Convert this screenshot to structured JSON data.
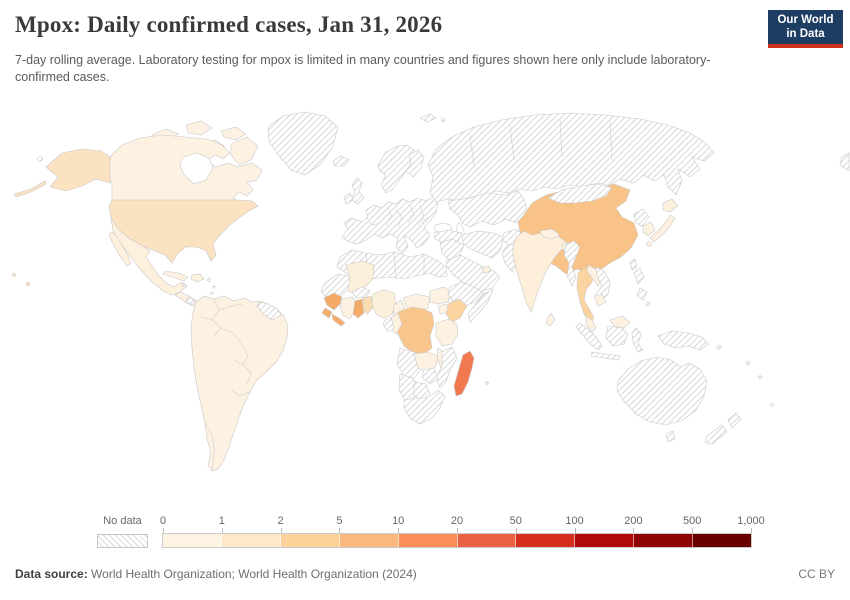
{
  "header": {
    "title": "Mpox: Daily confirmed cases, Jan 31, 2026",
    "subtitle": "7-day rolling average. Laboratory testing for mpox is limited in many countries and figures shown here only include laboratory-confirmed cases.",
    "logo": {
      "line1": "Our World",
      "line2": "in Data",
      "bg": "#1d3d63",
      "stripe": "#d0311f"
    }
  },
  "legend": {
    "no_data_label": "No data",
    "tick_labels": [
      "0",
      "1",
      "2",
      "5",
      "10",
      "20",
      "50",
      "100",
      "200",
      "500",
      "1,000"
    ],
    "colors": [
      "#fdf3e3",
      "#fee8c8",
      "#fcd29a",
      "#fcb97e",
      "#fc8d59",
      "#ec6144",
      "#d62f1f",
      "#b00a0a",
      "#8f0404",
      "#690000"
    ]
  },
  "footer": {
    "source_label": "Data source:",
    "source_text": " World Health Organization; World Health Organization (2024)",
    "license": "CC BY"
  },
  "map": {
    "border_color": "#c9c9c9",
    "ocean_color": "#ffffff",
    "countries": {
      "greenland": "hatch",
      "canada": "#fdf2e2",
      "canada-island": "#fdf2e2",
      "alaska": "#fbe2c0",
      "aleutians": "#fbe2c0",
      "bering-island": "hatch",
      "usa": "#fbe2c0",
      "hawaii": "#fbe2c0",
      "mexico": "#fdf0dc",
      "baja": "#fdf0dc",
      "guatemala-region": "#fdf2e2",
      "nicaragua": "hatch",
      "cuba": "#fdf2e2",
      "hispaniola": "#fdf2e2",
      "jamaica": "hatch",
      "puerto-rico": "#fdf2e2",
      "antilles": "hatch",
      "south-america": "#fdf2e2",
      "guyanas": "hatch",
      "iceland": "hatch",
      "uk": "hatch",
      "ireland": "hatch",
      "norway-sweden": "hatch",
      "finland": "hatch",
      "svalbard": "hatch",
      "europe-mainland": "hatch",
      "russia": "hatch",
      "russia-wrap": "hatch",
      "kazakhstan": "hatch",
      "turkey": "hatch",
      "middle-east": "hatch",
      "iran": "hatch",
      "afghanistan": "hatch",
      "pakistan": "hatch",
      "saudi-peninsula": "hatch",
      "uae": "#fdf2e2",
      "north-africa": "hatch",
      "mauritania-senegal": "hatch",
      "mali": "#fdf0db",
      "burkina-faso": "hatch",
      "guinea": "#f5aa66",
      "sierra-leone": "#f6ad6c",
      "liberia": "#f6ad6c",
      "cote-divoire": "#fdf2e2",
      "ghana": "#f5ab68",
      "togo-benin": "#fbdcb2",
      "nigeria": "#fdf0db",
      "cameroon": "#fdf2e2",
      "car": "#fdf2e2",
      "south-sudan": "#fdf2e2",
      "ethiopia": "hatch",
      "somalia": "hatch",
      "uganda": "#fdf2e2",
      "kenya": "#fbd4a0",
      "drc": "#f8c68c",
      "congo": "#fdf2e2",
      "gabon": "hatch",
      "tanzania": "#fdf2e2",
      "angola": "hatch",
      "zambia": "#fdf2e2",
      "malawi": "#fdf2e2",
      "mozambique": "hatch",
      "zimbabwe": "hatch",
      "namibia": "hatch",
      "botswana": "hatch",
      "south-africa": "hatch",
      "madagascar": "#f0794f",
      "indian-ocean-island": "hatch",
      "china": "#f9c387",
      "hainan": "#f9c387",
      "mongolia": "hatch",
      "india": "#fdefd9",
      "nepal": "#fdf2e2",
      "bangladesh": "#fdf2e2",
      "sri-lanka": "#fdf2e2",
      "myanmar": "hatch",
      "thailand": "#fbd4a0",
      "laos": "#fdf2e2",
      "vietnam": "hatch",
      "cambodia": "#fdf2e2",
      "malaysia": "#fdf2e2",
      "malaysia-borneo": "#fdf2e2",
      "sumatra": "hatch",
      "java": "hatch",
      "kalimantan": "hatch",
      "sulawesi": "hatch",
      "philippines": "hatch",
      "taiwan": "hatch",
      "north-korea": "hatch",
      "south-korea": "#fdf2e2",
      "japan": "#fdf0de",
      "new-guinea": "hatch",
      "australia": "hatch",
      "tasmania": "hatch",
      "new-zealand": "hatch",
      "pacific-island": "hatch"
    }
  },
  "chart_data": {
    "type": "heatmap",
    "title": "Mpox: Daily confirmed cases, Jan 31, 2026",
    "date": "Jan 31, 2026",
    "unit": "daily confirmed cases (7-day rolling average)",
    "bins": [
      0,
      1,
      2,
      5,
      10,
      20,
      50,
      100,
      200,
      500,
      1000
    ],
    "legend_position": "bottom",
    "values": {
      "Canada": "0-1",
      "United States": "1-2",
      "Mexico": "0-1",
      "Central America": "0-1",
      "Cuba": "0-1",
      "Dominican Republic/Haiti": "0-1",
      "Colombia": "0-1",
      "Venezuela": "0-1",
      "Ecuador": "0-1",
      "Peru": "0-1",
      "Brazil": "0-1",
      "Bolivia": "0-1",
      "Paraguay": "0-1",
      "Argentina": "0-1",
      "Chile": "0-1",
      "Uruguay": "0-1",
      "Mali": "0-1",
      "Guinea": "5-10",
      "Sierra Leone": "5-10",
      "Liberia": "5-10",
      "Cote d'Ivoire": "0-1",
      "Ghana": "5-10",
      "Togo/Benin": "2-5",
      "Nigeria": "0-1",
      "Cameroon": "0-1",
      "Central African Republic": "0-1",
      "South Sudan": "0-1",
      "Uganda": "0-1",
      "Kenya": "2-5",
      "Democratic Republic of Congo": "5-10",
      "Congo": "0-1",
      "Tanzania": "0-1",
      "Zambia": "0-1",
      "Malawi": "0-1",
      "Madagascar": "10-20",
      "United Arab Emirates": "0-1",
      "India": "0-1",
      "Nepal": "0-1",
      "Bangladesh": "0-1",
      "Sri Lanka": "0-1",
      "China": "5-10",
      "South Korea": "0-1",
      "Japan": "0-1",
      "Thailand": "2-5",
      "Laos": "0-1",
      "Cambodia": "0-1",
      "Malaysia": "0-1"
    },
    "no_data_regions": [
      "Greenland",
      "Europe",
      "Russia",
      "North Africa",
      "Ethiopia",
      "Somalia",
      "Angola",
      "Mozambique",
      "Southern Africa",
      "Middle East",
      "Central Asia",
      "Pakistan",
      "Mongolia",
      "Myanmar",
      "Vietnam",
      "Indonesia",
      "Philippines",
      "Australia",
      "New Zealand"
    ]
  }
}
